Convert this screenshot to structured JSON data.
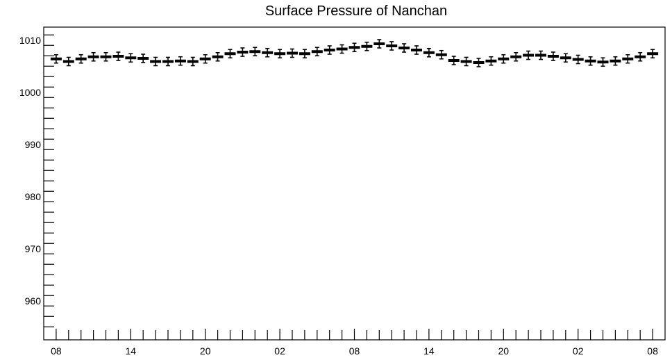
{
  "chart_data": {
    "type": "scatter",
    "title": "Surface Pressure of Nanchan",
    "xlabel": "",
    "ylabel": "",
    "x_tick_labels": [
      "08",
      "14",
      "20",
      "02",
      "08",
      "14",
      "20",
      "02",
      "08"
    ],
    "x_tick_step_hours": 6,
    "x_hours": [
      0,
      1,
      2,
      3,
      4,
      5,
      6,
      7,
      8,
      9,
      10,
      11,
      12,
      13,
      14,
      15,
      16,
      17,
      18,
      19,
      20,
      21,
      22,
      23,
      24,
      25,
      26,
      27,
      28,
      29,
      30,
      31,
      32,
      33,
      34,
      35,
      36,
      37,
      38,
      39,
      40,
      41,
      42,
      43,
      44,
      45,
      46,
      47,
      48
    ],
    "xlim_hours": [
      -1,
      49
    ],
    "y_ticks": [
      960,
      970,
      980,
      990,
      1000,
      1010
    ],
    "ylim": [
      952.5,
      1012.5
    ],
    "error": 0.8,
    "series": [
      {
        "values": [
          1006.4,
          1005.9,
          1006.4,
          1006.8,
          1006.8,
          1006.9,
          1006.6,
          1006.5,
          1005.9,
          1005.9,
          1006.0,
          1005.9,
          1006.4,
          1006.8,
          1007.4,
          1007.7,
          1007.8,
          1007.6,
          1007.4,
          1007.5,
          1007.4,
          1007.8,
          1008.1,
          1008.3,
          1008.6,
          1008.8,
          1009.3,
          1008.9,
          1008.5,
          1008.1,
          1007.6,
          1007.2,
          1006.1,
          1005.9,
          1005.7,
          1006.0,
          1006.4,
          1006.8,
          1007.1,
          1007.1,
          1006.9,
          1006.6,
          1006.3,
          1006.0,
          1005.8,
          1006.0,
          1006.4,
          1006.8,
          1007.4
        ]
      }
    ],
    "grid": false,
    "legend": "none"
  }
}
